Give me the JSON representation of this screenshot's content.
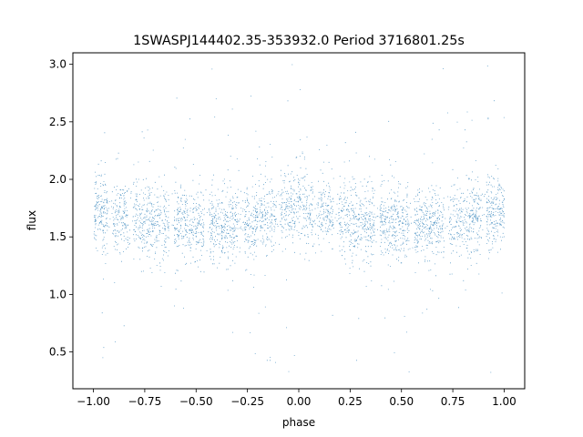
{
  "chart_data": {
    "type": "scatter",
    "title": "1SWASPJ144402.35-353932.0 Period 3716801.25s",
    "xlabel": "phase",
    "ylabel": "flux",
    "xlim": [
      -1.1,
      1.1
    ],
    "ylim": [
      0.18,
      3.1
    ],
    "x_ticks": [
      -1.0,
      -0.75,
      -0.5,
      -0.25,
      0.0,
      0.25,
      0.5,
      0.75,
      1.0
    ],
    "x_tick_labels": [
      "−1.00",
      "−0.75",
      "−0.50",
      "−0.25",
      "0.00",
      "0.25",
      "0.50",
      "0.75",
      "1.00"
    ],
    "y_ticks": [
      0.5,
      1.0,
      1.5,
      2.0,
      2.5,
      3.0
    ],
    "y_tick_labels": [
      "0.5",
      "1.0",
      "1.5",
      "2.0",
      "2.5",
      "3.0"
    ],
    "grid": false,
    "legend": "none",
    "marker_color": "#1f77b4",
    "series": [
      {
        "phase_range": [
          -1.0,
          1.0
        ],
        "point_count_estimate": 16000,
        "folded_twice": true,
        "median_flux_profile": {
          "phase": [
            -1.0,
            -0.9,
            -0.75,
            -0.6,
            -0.5,
            -0.4,
            -0.3,
            -0.2,
            -0.1,
            0.0,
            0.1,
            0.25,
            0.4,
            0.5,
            0.6,
            0.7,
            0.8,
            0.9,
            1.0
          ],
          "flux": [
            1.75,
            1.7,
            1.65,
            1.62,
            1.6,
            1.6,
            1.62,
            1.65,
            1.7,
            1.75,
            1.7,
            1.65,
            1.62,
            1.6,
            1.6,
            1.62,
            1.65,
            1.7,
            1.75
          ]
        },
        "core_flux_range": [
          1.3,
          2.2
        ],
        "outlier_flux_range": [
          0.3,
          3.0
        ],
        "visible_gaps_phase": [
          -0.92,
          -0.82,
          -0.62,
          -0.45,
          -0.28,
          -0.1,
          0.08,
          0.18,
          0.38,
          0.55,
          0.72,
          0.9
        ]
      }
    ]
  }
}
